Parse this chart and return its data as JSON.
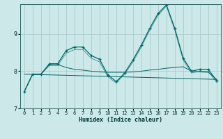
{
  "xlabel": "Humidex (Indice chaleur)",
  "bg_color": "#cce8e8",
  "grid_color": "#aacccc",
  "line_color": "#006666",
  "xlim": [
    -0.5,
    23.5
  ],
  "ylim": [
    7.0,
    9.8
  ],
  "yticks": [
    7,
    8,
    9
  ],
  "xticks": [
    0,
    1,
    2,
    3,
    4,
    5,
    6,
    7,
    8,
    9,
    10,
    11,
    12,
    13,
    14,
    15,
    16,
    17,
    18,
    19,
    20,
    21,
    22,
    23
  ],
  "line1_x": [
    0,
    1,
    2,
    3,
    4,
    5,
    6,
    7,
    8,
    9,
    10,
    11,
    12,
    13,
    14,
    15,
    16,
    17,
    18,
    19,
    20,
    21,
    22,
    23
  ],
  "line1_y": [
    7.45,
    7.92,
    7.92,
    8.2,
    8.2,
    8.55,
    8.65,
    8.65,
    8.42,
    8.32,
    7.9,
    7.72,
    7.95,
    8.3,
    8.7,
    9.15,
    9.55,
    9.78,
    9.15,
    8.35,
    8.0,
    8.05,
    8.05,
    7.75
  ],
  "line2_x": [
    0,
    1,
    2,
    3,
    4,
    5,
    6,
    7,
    8,
    9,
    10,
    11,
    12,
    13,
    14,
    15,
    16,
    17,
    18,
    19,
    20,
    21,
    22,
    23
  ],
  "line2_y": [
    7.45,
    7.92,
    7.92,
    8.18,
    8.18,
    8.1,
    8.05,
    8.03,
    8.0,
    7.98,
    7.97,
    7.97,
    7.97,
    7.98,
    8.0,
    8.03,
    8.05,
    8.08,
    8.1,
    8.12,
    8.0,
    7.98,
    7.97,
    7.78
  ],
  "line3_x": [
    0,
    23
  ],
  "line3_y": [
    7.92,
    7.78
  ],
  "line4_x": [
    0,
    1,
    2,
    3,
    4,
    5,
    6,
    7,
    8,
    9,
    10,
    11,
    12,
    13,
    14,
    15,
    16,
    17,
    18,
    19,
    20,
    21,
    22,
    23
  ],
  "line4_y": [
    7.45,
    7.92,
    7.92,
    8.15,
    8.15,
    8.48,
    8.58,
    8.58,
    8.35,
    8.25,
    7.85,
    7.68,
    7.92,
    8.25,
    8.65,
    9.1,
    9.5,
    9.75,
    9.1,
    8.3,
    7.95,
    8.0,
    8.0,
    7.7
  ]
}
